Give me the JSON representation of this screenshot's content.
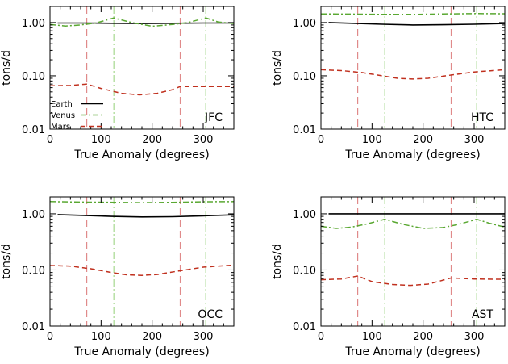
{
  "chart_data": [
    {
      "type": "line",
      "tag": "JFC",
      "xlabel": "True Anomaly (degrees)",
      "ylabel": "tons/d",
      "xlim": [
        0,
        360
      ],
      "ylim": [
        0.01,
        2
      ],
      "yscale": "log",
      "xticks": [
        0,
        100,
        200,
        300
      ],
      "xtick_labels": [
        "0",
        "100",
        "200",
        "300"
      ],
      "yticks": [
        0.01,
        0.1,
        1
      ],
      "ytick_labels": [
        "0.01",
        "0.10",
        "1.00"
      ],
      "legend": {
        "position": "lower-left",
        "entries": [
          {
            "label": "Earth",
            "series": "Earth"
          },
          {
            "label": "Venus",
            "series": "Venus"
          },
          {
            "label": "Mars",
            "series": "Mars"
          }
        ]
      },
      "vlines": [
        {
          "x": 72,
          "planet": "Mars"
        },
        {
          "x": 255,
          "planet": "Mars"
        },
        {
          "x": 125,
          "planet": "Venus"
        },
        {
          "x": 305,
          "planet": "Venus"
        }
      ],
      "series": [
        {
          "name": "Earth",
          "x": [
            15,
            60,
            120,
            180,
            240,
            300,
            360
          ],
          "values": [
            0.98,
            0.98,
            0.97,
            0.96,
            0.97,
            0.98,
            0.98
          ]
        },
        {
          "name": "Venus",
          "x": [
            0,
            30,
            60,
            90,
            125,
            160,
            200,
            240,
            270,
            305,
            330,
            360
          ],
          "values": [
            0.92,
            0.86,
            0.9,
            0.98,
            1.22,
            1.0,
            0.85,
            0.92,
            1.0,
            1.22,
            1.02,
            0.96
          ]
        },
        {
          "name": "Mars",
          "x": [
            0,
            40,
            72,
            100,
            140,
            175,
            210,
            240,
            255,
            300,
            360
          ],
          "values": [
            0.065,
            0.066,
            0.07,
            0.058,
            0.047,
            0.044,
            0.047,
            0.055,
            0.063,
            0.063,
            0.063
          ]
        }
      ]
    },
    {
      "type": "line",
      "tag": "HTC",
      "xlabel": "True Anomaly (degrees)",
      "ylabel": "tons/d",
      "xlim": [
        0,
        360
      ],
      "ylim": [
        0.01,
        2
      ],
      "yscale": "log",
      "xticks": [
        0,
        100,
        200,
        300
      ],
      "xtick_labels": [
        "0",
        "100",
        "200",
        "300"
      ],
      "yticks": [
        0.01,
        0.1,
        1
      ],
      "ytick_labels": [
        "0.01",
        "0.10",
        "1.00"
      ],
      "vlines": [
        {
          "x": 72,
          "planet": "Mars"
        },
        {
          "x": 255,
          "planet": "Mars"
        },
        {
          "x": 125,
          "planet": "Venus"
        },
        {
          "x": 305,
          "planet": "Venus"
        }
      ],
      "series": [
        {
          "name": "Earth",
          "x": [
            15,
            60,
            120,
            180,
            240,
            300,
            360
          ],
          "values": [
            1.0,
            0.97,
            0.93,
            0.9,
            0.91,
            0.93,
            0.96
          ]
        },
        {
          "name": "Venus",
          "x": [
            0,
            60,
            125,
            180,
            240,
            305,
            360
          ],
          "values": [
            1.45,
            1.44,
            1.42,
            1.42,
            1.45,
            1.47,
            1.46
          ]
        },
        {
          "name": "Mars",
          "x": [
            0,
            40,
            80,
            120,
            150,
            180,
            210,
            250,
            300,
            360
          ],
          "values": [
            0.13,
            0.125,
            0.115,
            0.1,
            0.09,
            0.087,
            0.09,
            0.102,
            0.118,
            0.13
          ]
        }
      ]
    },
    {
      "type": "line",
      "tag": "OCC",
      "xlabel": "True Anomaly (degrees)",
      "ylabel": "tons/d",
      "xlim": [
        0,
        360
      ],
      "ylim": [
        0.01,
        2
      ],
      "yscale": "log",
      "xticks": [
        0,
        100,
        200,
        300
      ],
      "xtick_labels": [
        "0",
        "100",
        "200",
        "300"
      ],
      "yticks": [
        0.01,
        0.1,
        1
      ],
      "ytick_labels": [
        "0.01",
        "0.10",
        "1.00"
      ],
      "vlines": [
        {
          "x": 72,
          "planet": "Mars"
        },
        {
          "x": 255,
          "planet": "Mars"
        },
        {
          "x": 125,
          "planet": "Venus"
        },
        {
          "x": 305,
          "planet": "Venus"
        }
      ],
      "series": [
        {
          "name": "Earth",
          "x": [
            15,
            60,
            120,
            180,
            240,
            300,
            360
          ],
          "values": [
            0.97,
            0.94,
            0.9,
            0.88,
            0.89,
            0.92,
            0.96
          ]
        },
        {
          "name": "Venus",
          "x": [
            0,
            60,
            125,
            180,
            240,
            305,
            360
          ],
          "values": [
            1.65,
            1.62,
            1.6,
            1.58,
            1.6,
            1.64,
            1.65
          ]
        },
        {
          "name": "Mars",
          "x": [
            0,
            40,
            80,
            120,
            150,
            180,
            210,
            250,
            300,
            360
          ],
          "values": [
            0.12,
            0.117,
            0.105,
            0.09,
            0.082,
            0.08,
            0.083,
            0.095,
            0.112,
            0.122
          ]
        }
      ]
    },
    {
      "type": "line",
      "tag": "AST",
      "xlabel": "True Anomaly (degrees)",
      "ylabel": "tons/d",
      "xlim": [
        0,
        360
      ],
      "ylim": [
        0.01,
        2
      ],
      "yscale": "log",
      "xticks": [
        0,
        100,
        200,
        300
      ],
      "xtick_labels": [
        "0",
        "100",
        "200",
        "300"
      ],
      "yticks": [
        0.01,
        0.1,
        1
      ],
      "ytick_labels": [
        "0.01",
        "0.10",
        "1.00"
      ],
      "vlines": [
        {
          "x": 72,
          "planet": "Mars"
        },
        {
          "x": 255,
          "planet": "Mars"
        },
        {
          "x": 125,
          "planet": "Venus"
        },
        {
          "x": 305,
          "planet": "Venus"
        }
      ],
      "series": [
        {
          "name": "Earth",
          "x": [
            15,
            60,
            120,
            180,
            240,
            300,
            360
          ],
          "values": [
            1.0,
            1.0,
            1.0,
            1.0,
            1.0,
            1.0,
            1.0
          ]
        },
        {
          "name": "Venus",
          "x": [
            0,
            30,
            60,
            90,
            125,
            160,
            200,
            240,
            270,
            305,
            330,
            360
          ],
          "values": [
            0.6,
            0.55,
            0.58,
            0.66,
            0.8,
            0.65,
            0.55,
            0.57,
            0.65,
            0.8,
            0.68,
            0.58
          ]
        },
        {
          "name": "Mars",
          "x": [
            0,
            40,
            72,
            100,
            140,
            175,
            210,
            240,
            255,
            300,
            360
          ],
          "values": [
            0.067,
            0.069,
            0.078,
            0.062,
            0.055,
            0.053,
            0.056,
            0.066,
            0.072,
            0.069,
            0.068
          ]
        }
      ]
    }
  ],
  "style": {
    "colors": {
      "Earth": "#000000",
      "Venus": "#5aa832",
      "Mars": "#c0301e",
      "vline_Mars": "#e08a8a",
      "vline_Venus": "#a6d88e",
      "axis": "#000000"
    }
  }
}
